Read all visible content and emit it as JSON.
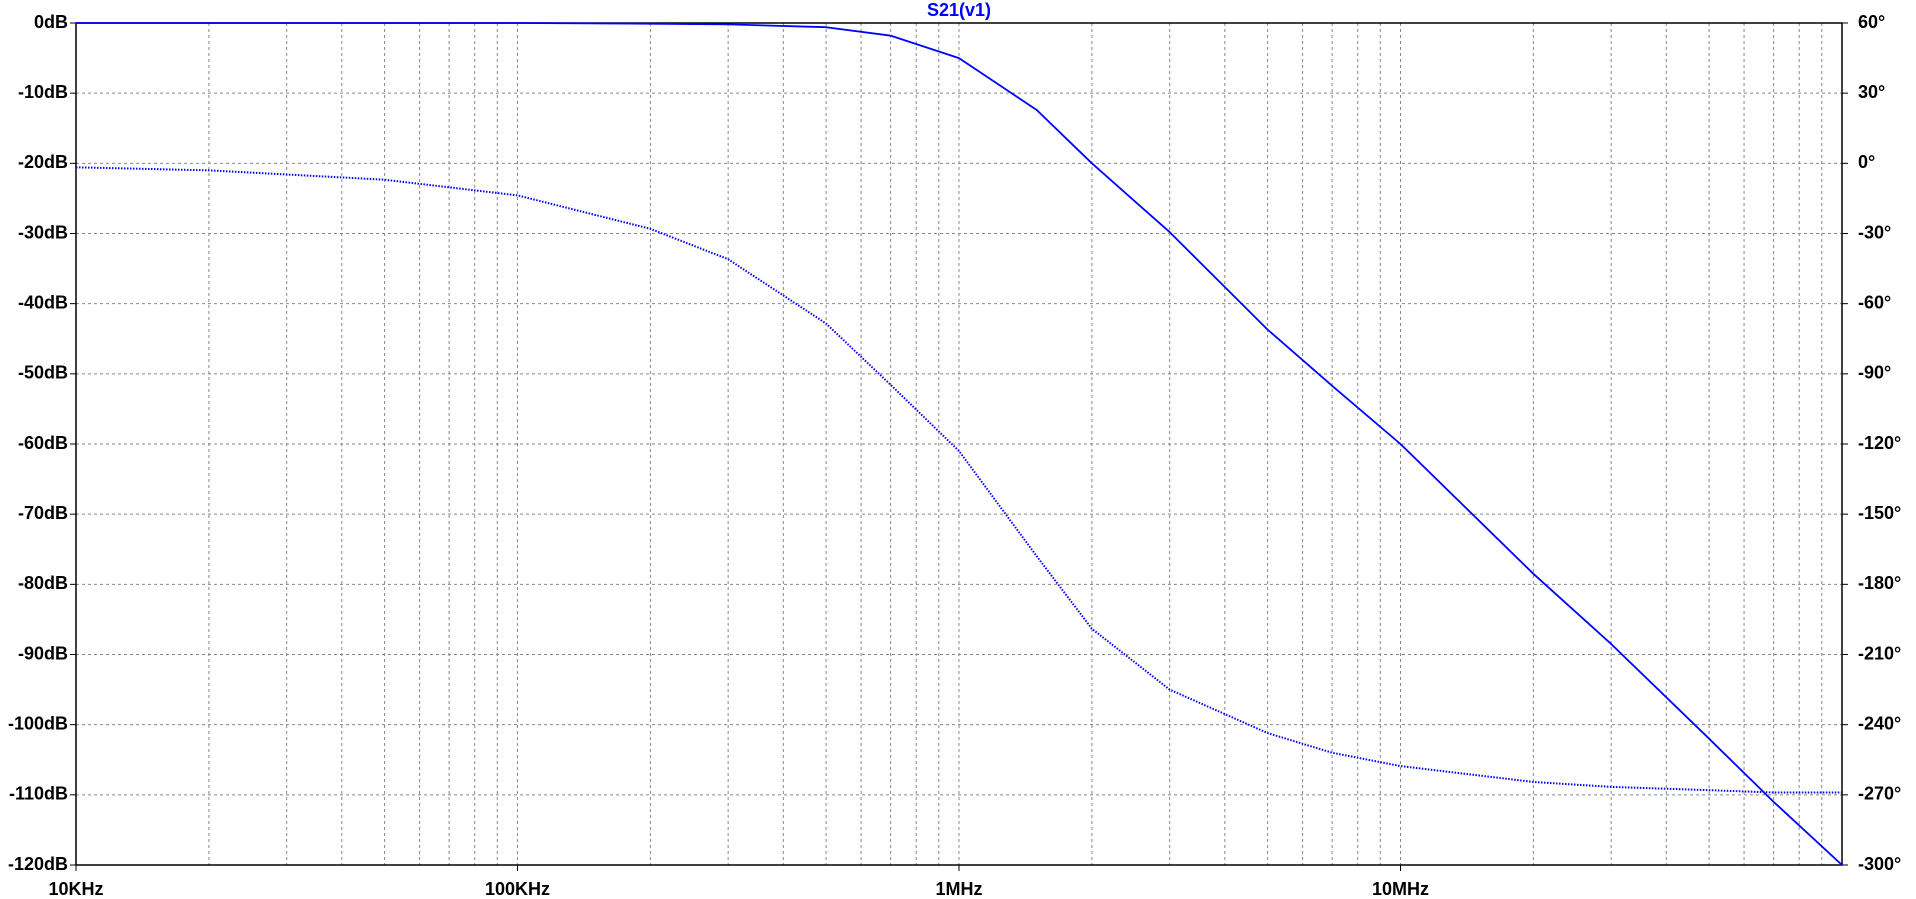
{
  "chart_data": {
    "type": "line",
    "title": "S21(v1)",
    "x": [
      10000,
      20000,
      50000,
      100000,
      200000,
      300000,
      500000,
      700000,
      1000000,
      1500000,
      2000000,
      3000000,
      5000000,
      7000000,
      10000000,
      20000000,
      30000000,
      50000000,
      70000000,
      100000000
    ],
    "series": [
      {
        "color": "#0000ff",
        "style": "solid",
        "axis": "y",
        "values": [
          0,
          0,
          0,
          0,
          -0.1,
          -0.2,
          -0.6,
          -1.8,
          -5,
          -12.4,
          -20,
          -29.8,
          -43.7,
          -51.7,
          -60,
          -78.5,
          -88.5,
          -102,
          -111,
          -120
        ]
      },
      {
        "color": "#0000ff",
        "style": "dotted",
        "axis": "y2",
        "values": [
          -1.7,
          -3,
          -7,
          -13.7,
          -28,
          -41,
          -68.5,
          -94.7,
          -123,
          -168,
          -199,
          -225,
          -243.6,
          -252,
          -257.7,
          -264.5,
          -266.6,
          -268,
          -269,
          -269
        ]
      }
    ],
    "xscale": "log",
    "xlim": [
      10000,
      100000000
    ],
    "xticks": [
      {
        "value": 10000,
        "label": "10KHz"
      },
      {
        "value": 100000,
        "label": "100KHz"
      },
      {
        "value": 1000000,
        "label": "1MHz"
      },
      {
        "value": 10000000,
        "label": "10MHz"
      }
    ],
    "xminorticks": [
      20000,
      30000,
      40000,
      50000,
      60000,
      70000,
      80000,
      90000,
      200000,
      300000,
      400000,
      500000,
      600000,
      700000,
      800000,
      900000,
      2000000,
      3000000,
      4000000,
      5000000,
      6000000,
      7000000,
      8000000,
      9000000,
      20000000,
      30000000,
      40000000,
      50000000,
      60000000,
      70000000,
      80000000,
      90000000
    ],
    "ylim": [
      -120,
      0
    ],
    "yticks": [
      {
        "value": 0,
        "label": "0dB"
      },
      {
        "value": -10,
        "label": "-10dB"
      },
      {
        "value": -20,
        "label": "-20dB"
      },
      {
        "value": -30,
        "label": "-30dB"
      },
      {
        "value": -40,
        "label": "-40dB"
      },
      {
        "value": -50,
        "label": "-50dB"
      },
      {
        "value": -60,
        "label": "-60dB"
      },
      {
        "value": -70,
        "label": "-70dB"
      },
      {
        "value": -80,
        "label": "-80dB"
      },
      {
        "value": -90,
        "label": "-90dB"
      },
      {
        "value": -100,
        "label": "-100dB"
      },
      {
        "value": -110,
        "label": "-110dB"
      },
      {
        "value": -120,
        "label": "-120dB"
      }
    ],
    "y2lim": [
      -300,
      60
    ],
    "y2ticks": [
      {
        "value": 60,
        "label": "60°"
      },
      {
        "value": 30,
        "label": "30°"
      },
      {
        "value": 0,
        "label": "0°"
      },
      {
        "value": -30,
        "label": "-30°"
      },
      {
        "value": -60,
        "label": "-60°"
      },
      {
        "value": -90,
        "label": "-90°"
      },
      {
        "value": -120,
        "label": "-120°"
      },
      {
        "value": -150,
        "label": "-150°"
      },
      {
        "value": -180,
        "label": "-180°"
      },
      {
        "value": -210,
        "label": "-210°"
      },
      {
        "value": -240,
        "label": "-240°"
      },
      {
        "value": -270,
        "label": "-270°"
      },
      {
        "value": -300,
        "label": "-300°"
      }
    ],
    "grid": true
  }
}
